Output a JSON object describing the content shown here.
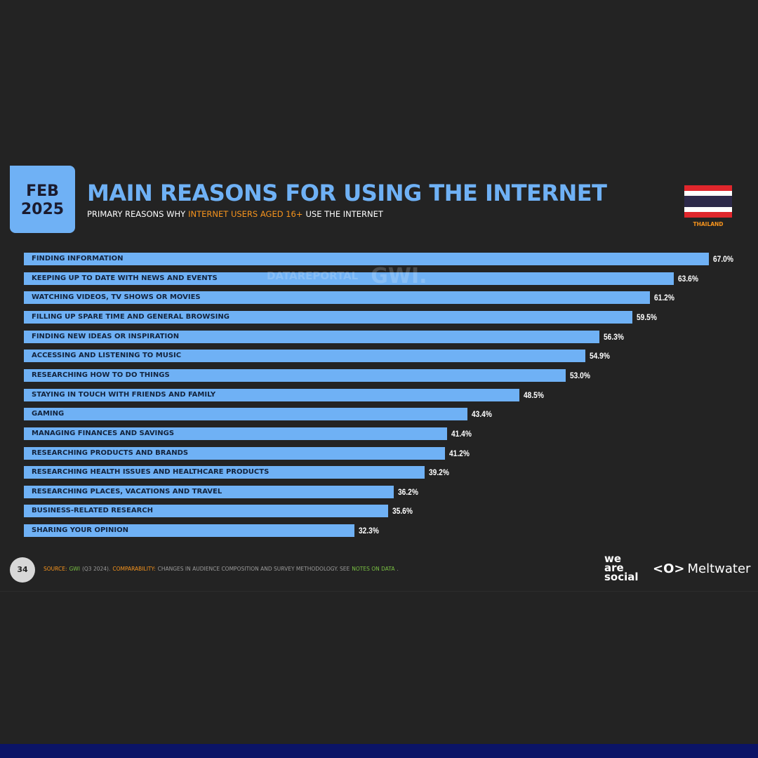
{
  "chart_data": {
    "type": "bar",
    "orientation": "horizontal",
    "badge": [
      "FEB",
      "2025"
    ],
    "title": "MAIN REASONS FOR USING THE INTERNET",
    "subtitle": [
      {
        "text": "PRIMARY REASONS WHY",
        "color": "#ffffff"
      },
      {
        "text": "INTERNET USERS AGED 16+",
        "color": "#f7941d"
      },
      {
        "text": "USE THE INTERNET",
        "color": "#ffffff"
      }
    ],
    "country": "THAILAND",
    "watermark": [
      "DATAREPORTAL",
      "GWI."
    ],
    "color": "#6fb1f5",
    "categories": [
      "FINDING INFORMATION",
      "KEEPING UP TO DATE WITH NEWS AND EVENTS",
      "WATCHING VIDEOS, TV SHOWS OR MOVIES",
      "FILLING UP SPARE TIME AND GENERAL BROWSING",
      "FINDING NEW IDEAS OR INSPIRATION",
      "ACCESSING AND LISTENING TO MUSIC",
      "RESEARCHING HOW TO DO THINGS",
      "STAYING IN TOUCH WITH FRIENDS AND FAMILY",
      "GAMING",
      "MANAGING FINANCES AND SAVINGS",
      "RESEARCHING PRODUCTS AND BRANDS",
      "RESEARCHING HEALTH ISSUES AND HEALTHCARE PRODUCTS",
      "RESEARCHING PLACES, VACATIONS AND TRAVEL",
      "BUSINESS-RELATED RESEARCH",
      "SHARING YOUR OPINION"
    ],
    "values": [
      67.0,
      63.6,
      61.2,
      59.5,
      56.3,
      54.9,
      53.0,
      48.5,
      43.4,
      41.4,
      41.2,
      39.2,
      36.2,
      35.6,
      32.3
    ],
    "value_labels": [
      "67.0%",
      "63.6%",
      "61.2%",
      "59.5%",
      "56.3%",
      "54.9%",
      "53.0%",
      "48.5%",
      "43.4%",
      "41.4%",
      "41.2%",
      "39.2%",
      "36.2%",
      "35.6%",
      "32.3%"
    ],
    "page_number": "34",
    "footer": [
      {
        "text": "SOURCE:",
        "color": "#f7941d"
      },
      {
        "text": "GWI",
        "color": "#7ac143"
      },
      {
        "text": "(Q3 2024).",
        "color": "#9a9a9a"
      },
      {
        "text": "COMPARABILITY:",
        "color": "#f7941d"
      },
      {
        "text": "CHANGES IN AUDIENCE COMPOSITION AND SURVEY METHODOLOGY. SEE",
        "color": "#9a9a9a"
      },
      {
        "text": "NOTES ON DATA",
        "color": "#7ac143"
      },
      {
        "text": ".",
        "color": "#9a9a9a"
      }
    ],
    "logos": {
      "we_are_social": [
        "we",
        "are",
        "social"
      ],
      "meltwater": "Meltwater"
    }
  }
}
